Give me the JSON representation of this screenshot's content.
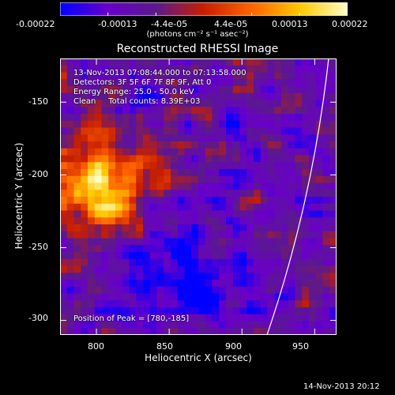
{
  "colorbar": {
    "tick_labels": [
      "-0.00022",
      "-0.00013",
      "-4.4e-05",
      "4.4e-05",
      "0.00013",
      "0.00022"
    ],
    "unit_label": "(photons cm⁻² s⁻¹ asec⁻²)",
    "colors": [
      "#0000ff",
      "#6a00c8",
      "#5a1a8c",
      "#c81e00",
      "#ff6400",
      "#ffc800",
      "#ffffc8"
    ]
  },
  "title": "Reconstructed RHESSI Image",
  "info": {
    "time_range": "13-Nov-2013 07:08:44.000 to 07:13:58.000",
    "detectors": "Detectors: 3F 5F 6F 7F 8F 9F, Att 0",
    "energy": "Energy Range: 25.0 - 50.0 keV",
    "clean": "Clean     Total counts: 8.39E+03"
  },
  "peak_label": "Position of Peak = [780,-185]",
  "chart_data": {
    "type": "heatmap",
    "title": "Reconstructed RHESSI Image",
    "xlabel": "Heliocentric X (arcsec)",
    "ylabel": "Heliocentric Y (arcsec)",
    "xlim": [
      775,
      965
    ],
    "ylim": [
      -310,
      -120
    ],
    "x_ticks": [
      800,
      850,
      900,
      950
    ],
    "y_ticks": [
      -150,
      -200,
      -250,
      -300
    ],
    "color_range": [
      -0.00022,
      0.00022
    ],
    "peak_position": [
      780,
      -185
    ]
  },
  "footer": "14-Nov-2013 20:12"
}
